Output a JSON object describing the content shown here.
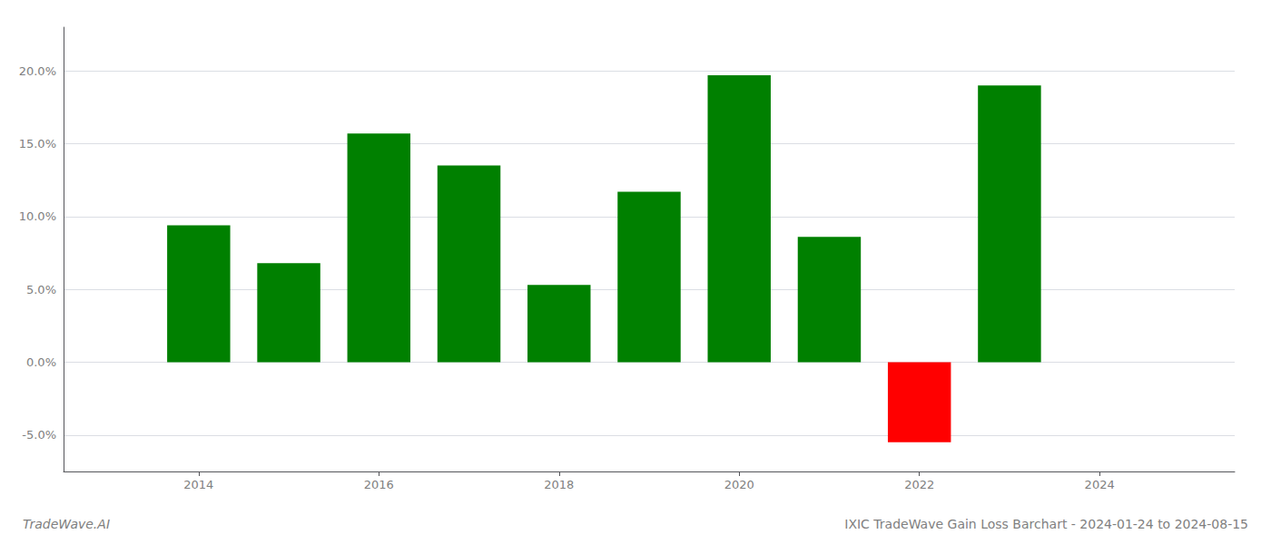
{
  "chart_data": {
    "type": "bar",
    "title": "IXIC TradeWave Gain Loss Barchart - 2024-01-24 to 2024-08-15",
    "annotations": [
      "TradeWave.AI"
    ],
    "x": [
      2014,
      2015,
      2016,
      2017,
      2018,
      2019,
      2020,
      2021,
      2022,
      2023
    ],
    "values": [
      0.094,
      0.068,
      0.157,
      0.135,
      0.053,
      0.117,
      0.197,
      0.086,
      -0.055,
      0.19
    ],
    "colors": [
      "#008000",
      "#008000",
      "#008000",
      "#008000",
      "#008000",
      "#008000",
      "#008000",
      "#008000",
      "#ff0000",
      "#008000"
    ],
    "xlim": [
      2012.5,
      2025.5
    ],
    "xticks": [
      2014,
      2016,
      2018,
      2020,
      2022,
      2024
    ],
    "ylim": [
      -0.075,
      0.23
    ],
    "yticks": [
      {
        "value": -0.05,
        "label": "-5.0%"
      },
      {
        "value": 0.0,
        "label": "0.0%"
      },
      {
        "value": 0.05,
        "label": "5.0%"
      },
      {
        "value": 0.1,
        "label": "10.0%"
      },
      {
        "value": 0.15,
        "label": "15.0%"
      },
      {
        "value": 0.2,
        "label": "20.0%"
      }
    ],
    "grid": true
  }
}
